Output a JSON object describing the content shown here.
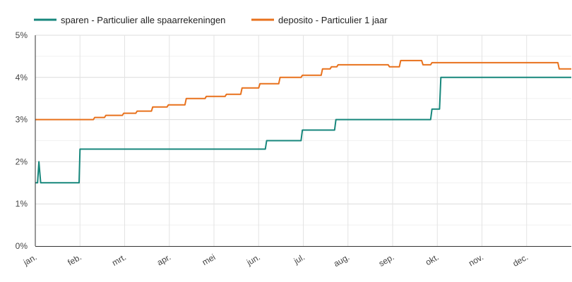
{
  "chart_data": {
    "type": "line",
    "title": "",
    "xlabel": "",
    "ylabel": "",
    "y_unit": "%",
    "ylim": [
      0,
      5
    ],
    "y_ticks": [
      "0%",
      "1%",
      "2%",
      "3%",
      "4%",
      "5%"
    ],
    "x_ticks": [
      "jan.",
      "feb.",
      "mrt.",
      "apr.",
      "mei",
      "jun.",
      "jul.",
      "aug.",
      "sep.",
      "okt.",
      "nov.",
      "dec."
    ],
    "xlim": [
      0,
      12
    ],
    "legend_position": "top-left",
    "grid": true,
    "series": [
      {
        "name": "sparen - Particulier alle spaarrekeningen",
        "color": "#17877c",
        "x": [
          0,
          0.05,
          0.08,
          0.12,
          0.98,
          1.0,
          5.15,
          5.18,
          5.95,
          5.98,
          6.7,
          6.73,
          8.85,
          8.88,
          9.05,
          9.08,
          12
        ],
        "y": [
          1.5,
          1.5,
          2.0,
          1.5,
          1.5,
          2.3,
          2.3,
          2.5,
          2.5,
          2.75,
          2.75,
          3.0,
          3.0,
          3.25,
          3.25,
          4.0,
          4.0
        ]
      },
      {
        "name": "deposito - Particulier 1 jaar",
        "color": "#e8711c",
        "x": [
          0,
          1.3,
          1.33,
          1.55,
          1.58,
          1.95,
          1.98,
          2.25,
          2.28,
          2.6,
          2.63,
          2.95,
          2.98,
          3.35,
          3.38,
          3.8,
          3.83,
          4.25,
          4.28,
          4.6,
          4.63,
          5.0,
          5.03,
          5.45,
          5.48,
          5.95,
          5.98,
          6.4,
          6.43,
          6.6,
          6.63,
          6.75,
          6.78,
          7.9,
          7.93,
          8.15,
          8.18,
          8.65,
          8.68,
          8.85,
          8.88,
          9.55,
          9.58,
          11.7,
          11.73,
          12
        ],
        "y": [
          3.0,
          3.0,
          3.05,
          3.05,
          3.1,
          3.1,
          3.15,
          3.15,
          3.2,
          3.2,
          3.3,
          3.3,
          3.35,
          3.35,
          3.5,
          3.5,
          3.55,
          3.55,
          3.6,
          3.6,
          3.75,
          3.75,
          3.85,
          3.85,
          4.0,
          4.0,
          4.05,
          4.05,
          4.2,
          4.2,
          4.25,
          4.25,
          4.3,
          4.3,
          4.25,
          4.25,
          4.4,
          4.4,
          4.3,
          4.3,
          4.35,
          4.35,
          4.35,
          4.35,
          4.2,
          4.2
        ]
      }
    ]
  }
}
